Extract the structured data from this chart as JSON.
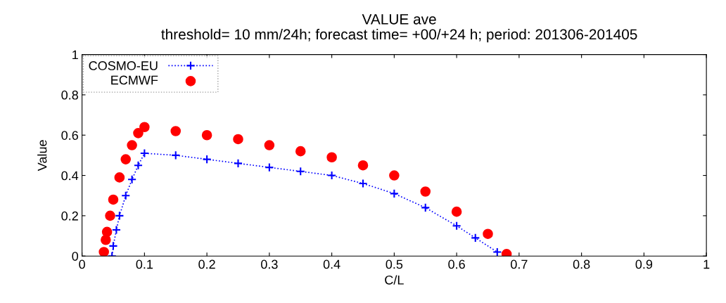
{
  "chart_data": {
    "type": "line",
    "title": "VALUE ave",
    "subtitle": "threshold= 10 mm/24h; forecast time= +00/+24 h; period: 201306-201405",
    "xlabel": "C/L",
    "ylabel": "Value",
    "xlim": [
      0,
      1
    ],
    "ylim": [
      0,
      1
    ],
    "xticks": [
      0,
      0.1,
      0.2,
      0.3,
      0.4,
      0.5,
      0.6,
      0.7,
      0.8,
      0.9,
      1
    ],
    "yticks": [
      0,
      0.2,
      0.4,
      0.6,
      0.8,
      1
    ],
    "grid": false,
    "legend": "top left",
    "series": [
      {
        "name": "COSMO-EU",
        "color": "#0000ff",
        "marker": "cross",
        "line_style": "dotted",
        "x": [
          0.048,
          0.05,
          0.055,
          0.06,
          0.07,
          0.08,
          0.09,
          0.1,
          0.15,
          0.2,
          0.25,
          0.3,
          0.35,
          0.4,
          0.45,
          0.5,
          0.55,
          0.6,
          0.63,
          0.665
        ],
        "values": [
          0.0,
          0.05,
          0.13,
          0.2,
          0.3,
          0.38,
          0.45,
          0.51,
          0.5,
          0.48,
          0.46,
          0.44,
          0.42,
          0.4,
          0.36,
          0.31,
          0.24,
          0.15,
          0.09,
          0.02
        ]
      },
      {
        "name": "ECMWF",
        "type": "scatter",
        "color": "#ff0000",
        "marker": "circle",
        "x": [
          0.035,
          0.038,
          0.04,
          0.045,
          0.05,
          0.06,
          0.07,
          0.08,
          0.09,
          0.1,
          0.15,
          0.2,
          0.25,
          0.3,
          0.35,
          0.4,
          0.45,
          0.5,
          0.55,
          0.6,
          0.65,
          0.68
        ],
        "values": [
          0.02,
          0.08,
          0.12,
          0.2,
          0.28,
          0.39,
          0.48,
          0.55,
          0.61,
          0.64,
          0.62,
          0.6,
          0.58,
          0.55,
          0.52,
          0.49,
          0.45,
          0.4,
          0.32,
          0.22,
          0.11,
          0.01
        ]
      }
    ]
  }
}
